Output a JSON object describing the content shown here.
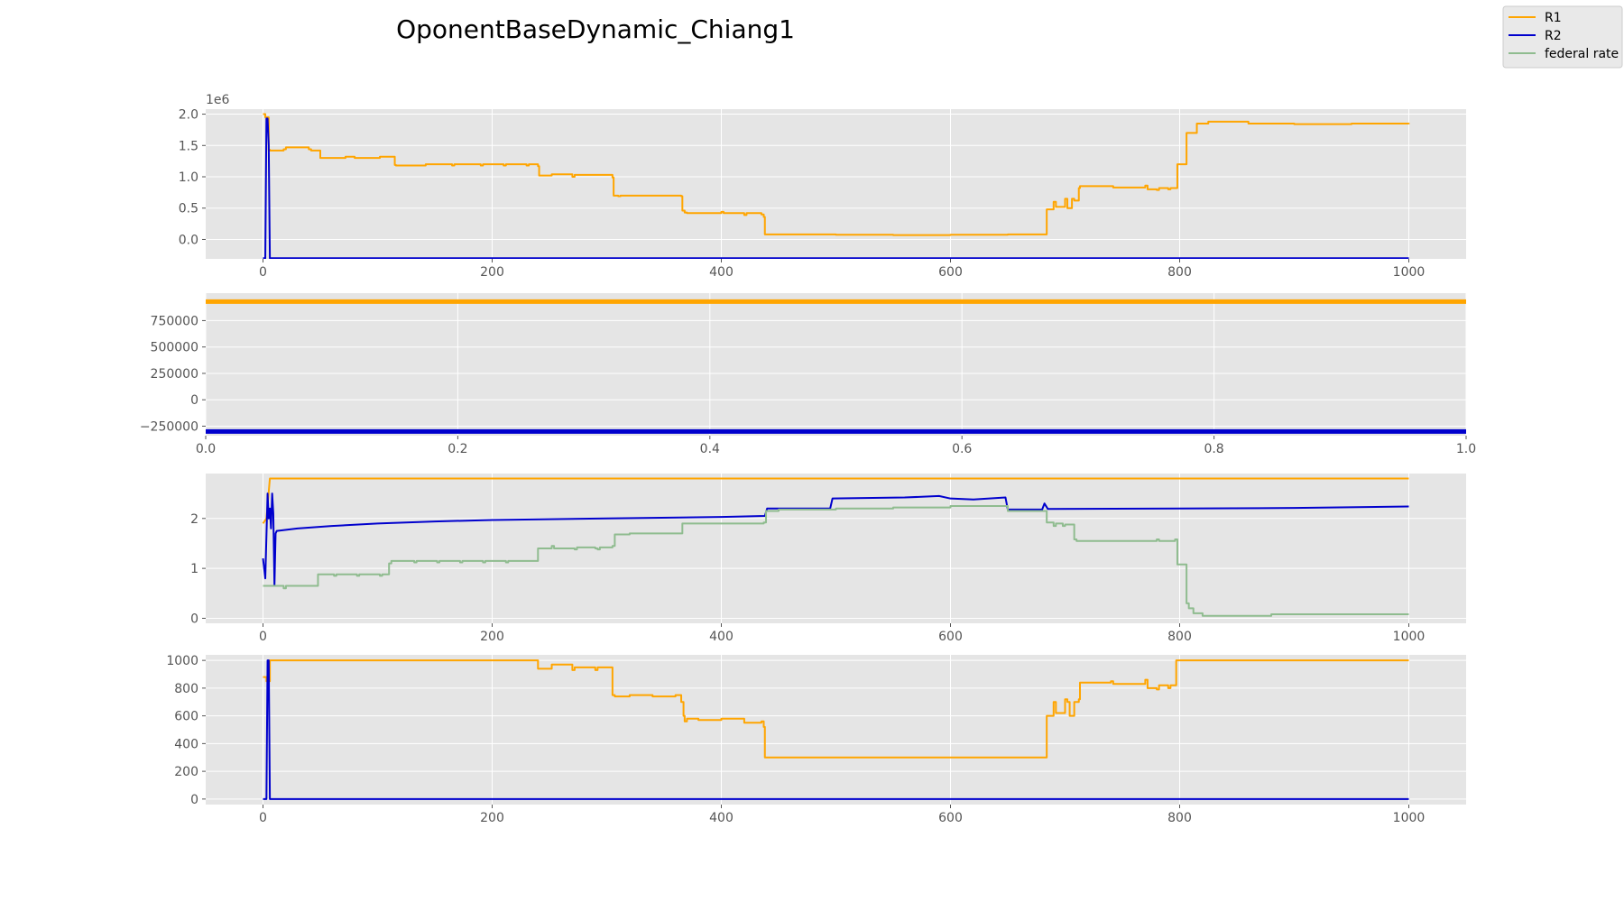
{
  "figure": {
    "title": "OponentBaseDynamic_Chiang1"
  },
  "legend": {
    "location": "upper-right",
    "entries": [
      {
        "name": "R1",
        "color": "#ffa500"
      },
      {
        "name": "R2",
        "color": "#0000cd"
      },
      {
        "name": "federal rate",
        "color": "#8fbc8f"
      }
    ]
  },
  "chart_data": [
    {
      "type": "line",
      "xlim": [
        -50,
        1050
      ],
      "ylim": [
        -310000,
        2080000
      ],
      "xticks": [
        0,
        200,
        400,
        600,
        800,
        1000
      ],
      "xtick_labels": [
        "0",
        "200",
        "400",
        "600",
        "800",
        "1000"
      ],
      "yticks": [
        0,
        500000,
        1000000,
        1500000,
        2000000
      ],
      "ytick_labels": [
        "0.0",
        "0.5",
        "1.0",
        "1.5",
        "2.0"
      ],
      "offset_label": "1e6",
      "grid": true,
      "series": [
        {
          "name": "R1",
          "color": "#ffa500",
          "step": true,
          "x": [
            0,
            2,
            5,
            6,
            18,
            20,
            40,
            42,
            50,
            51,
            70,
            72,
            80,
            82,
            100,
            102,
            115,
            116,
            140,
            142,
            165,
            167,
            190,
            192,
            210,
            212,
            230,
            232,
            240,
            241,
            250,
            252,
            270,
            272,
            305,
            306,
            310,
            312,
            365,
            366,
            368,
            370,
            400,
            402,
            420,
            422,
            435,
            437,
            438,
            500,
            550,
            600,
            650,
            683,
            684,
            690,
            692,
            700,
            702,
            706,
            708,
            712,
            713,
            740,
            742,
            770,
            772,
            780,
            782,
            790,
            792,
            797,
            798,
            805,
            806,
            815,
            825,
            850,
            860,
            880,
            900,
            950,
            1000
          ],
          "y": [
            2000000,
            1950000,
            1430000,
            1420000,
            1440000,
            1470000,
            1440000,
            1420000,
            1300000,
            1300000,
            1300000,
            1320000,
            1300000,
            1300000,
            1300000,
            1320000,
            1190000,
            1180000,
            1180000,
            1200000,
            1180000,
            1200000,
            1180000,
            1200000,
            1180000,
            1200000,
            1180000,
            1200000,
            1170000,
            1020000,
            1020000,
            1040000,
            1000000,
            1030000,
            990000,
            700000,
            690000,
            700000,
            690000,
            460000,
            430000,
            420000,
            440000,
            420000,
            390000,
            420000,
            400000,
            360000,
            80000,
            75000,
            70000,
            75000,
            80000,
            80000,
            480000,
            600000,
            520000,
            650000,
            500000,
            650000,
            620000,
            820000,
            850000,
            850000,
            830000,
            860000,
            800000,
            790000,
            820000,
            800000,
            820000,
            820000,
            1200000,
            1200000,
            1700000,
            1850000,
            1880000,
            1880000,
            1850000,
            1850000,
            1840000,
            1850000,
            1840000
          ]
        },
        {
          "name": "R2",
          "color": "#0000cd",
          "step": false,
          "x": [
            0,
            2,
            3,
            4,
            5,
            6,
            8,
            1000
          ],
          "y": [
            -300000,
            -300000,
            1930000,
            1930000,
            1500000,
            -300000,
            -300000,
            -300000
          ]
        }
      ]
    },
    {
      "type": "line",
      "xlim": [
        0,
        1
      ],
      "ylim": [
        -340000,
        1010000
      ],
      "xticks": [
        0,
        0.2,
        0.4,
        0.6,
        0.8,
        1.0
      ],
      "xtick_labels": [
        "0.0",
        "0.2",
        "0.4",
        "0.6",
        "0.8",
        "1.0"
      ],
      "yticks": [
        -250000,
        0,
        250000,
        500000,
        750000
      ],
      "ytick_labels": [
        "−250000",
        "0",
        "250000",
        "500000",
        "750000"
      ],
      "grid": true,
      "series": [
        {
          "name": "R1",
          "color": "#ffa500",
          "step": false,
          "x": [
            0,
            1
          ],
          "y": [
            930000,
            930000
          ],
          "width": 5
        },
        {
          "name": "R2",
          "color": "#0000cd",
          "step": false,
          "x": [
            0,
            1
          ],
          "y": [
            -300000,
            -300000
          ],
          "width": 5
        }
      ]
    },
    {
      "type": "line",
      "xlim": [
        -50,
        1050
      ],
      "ylim": [
        -0.1,
        2.9
      ],
      "xticks": [
        0,
        200,
        400,
        600,
        800,
        1000
      ],
      "xtick_labels": [
        "0",
        "200",
        "400",
        "600",
        "800",
        "1000"
      ],
      "yticks": [
        0,
        1,
        2
      ],
      "ytick_labels": [
        "0",
        "1",
        "2"
      ],
      "grid": true,
      "series": [
        {
          "name": "R1",
          "color": "#ffa500",
          "step": false,
          "x": [
            0,
            3,
            6,
            1000
          ],
          "y": [
            1.9,
            2.0,
            2.8,
            2.8
          ]
        },
        {
          "name": "R2",
          "color": "#0000cd",
          "step": false,
          "x": [
            0,
            2,
            4,
            5,
            6,
            7,
            8,
            9,
            10,
            11,
            12,
            30,
            60,
            100,
            150,
            200,
            300,
            400,
            438,
            440,
            495,
            497,
            560,
            590,
            600,
            620,
            648,
            650,
            680,
            682,
            685,
            800,
            900,
            1000
          ],
          "y": [
            1.2,
            0.8,
            2.5,
            2.0,
            2.2,
            1.8,
            2.5,
            2.1,
            0.65,
            1.7,
            1.75,
            1.8,
            1.85,
            1.9,
            1.94,
            1.97,
            2.0,
            2.03,
            2.05,
            2.2,
            2.2,
            2.4,
            2.42,
            2.45,
            2.4,
            2.38,
            2.42,
            2.18,
            2.18,
            2.3,
            2.19,
            2.2,
            2.21,
            2.24
          ]
        },
        {
          "name": "federal rate",
          "color": "#8fbc8f",
          "step": true,
          "x": [
            0,
            16,
            18,
            20,
            38,
            40,
            48,
            50,
            60,
            62,
            64,
            80,
            82,
            84,
            100,
            102,
            104,
            110,
            112,
            114,
            130,
            132,
            134,
            150,
            152,
            154,
            170,
            172,
            174,
            190,
            192,
            194,
            210,
            212,
            214,
            238,
            240,
            250,
            252,
            254,
            270,
            272,
            274,
            290,
            292,
            294,
            305,
            307,
            320,
            364,
            366,
            400,
            437,
            439,
            450,
            500,
            550,
            600,
            650,
            682,
            684,
            690,
            692,
            698,
            700,
            708,
            710,
            740,
            760,
            770,
            780,
            782,
            796,
            798,
            804,
            806,
            808,
            812,
            820,
            840,
            860,
            880,
            900,
            950,
            1000
          ],
          "y": [
            0.65,
            0.65,
            0.6,
            0.65,
            0.65,
            0.65,
            0.88,
            0.88,
            0.88,
            0.85,
            0.88,
            0.88,
            0.85,
            0.88,
            0.88,
            0.85,
            0.88,
            1.1,
            1.15,
            1.15,
            1.15,
            1.12,
            1.15,
            1.15,
            1.12,
            1.15,
            1.15,
            1.12,
            1.15,
            1.15,
            1.12,
            1.15,
            1.15,
            1.12,
            1.15,
            1.15,
            1.4,
            1.4,
            1.45,
            1.4,
            1.4,
            1.38,
            1.42,
            1.4,
            1.38,
            1.42,
            1.45,
            1.68,
            1.7,
            1.7,
            1.9,
            1.9,
            1.92,
            2.15,
            2.18,
            2.2,
            2.22,
            2.25,
            2.15,
            2.15,
            1.92,
            1.85,
            1.9,
            1.85,
            1.88,
            1.58,
            1.55,
            1.55,
            1.55,
            1.55,
            1.58,
            1.55,
            1.58,
            1.08,
            1.08,
            0.3,
            0.2,
            0.1,
            0.05,
            0.05,
            0.05,
            0.08,
            0.08,
            0.08,
            0.08
          ]
        }
      ]
    },
    {
      "type": "line",
      "xlim": [
        -50,
        1050
      ],
      "ylim": [
        -40,
        1040
      ],
      "xticks": [
        0,
        200,
        400,
        600,
        800,
        1000
      ],
      "xtick_labels": [
        "0",
        "200",
        "400",
        "600",
        "800",
        "1000"
      ],
      "yticks": [
        0,
        200,
        400,
        600,
        800,
        1000
      ],
      "ytick_labels": [
        "0",
        "200",
        "400",
        "600",
        "800",
        "1000"
      ],
      "grid": true,
      "series": [
        {
          "name": "R1",
          "color": "#ffa500",
          "step": true,
          "x": [
            0,
            3,
            6,
            100,
            200,
            238,
            240,
            250,
            252,
            270,
            272,
            290,
            292,
            305,
            307,
            320,
            340,
            360,
            365,
            367,
            368,
            370,
            380,
            400,
            420,
            435,
            437,
            438,
            500,
            550,
            600,
            650,
            682,
            684,
            690,
            692,
            700,
            702,
            704,
            708,
            712,
            713,
            740,
            742,
            770,
            772,
            780,
            782,
            790,
            792,
            796,
            797,
            1000
          ],
          "y": [
            880,
            850,
            1000,
            1000,
            1000,
            1000,
            940,
            940,
            970,
            930,
            950,
            930,
            950,
            750,
            740,
            750,
            740,
            750,
            700,
            600,
            560,
            580,
            570,
            580,
            550,
            560,
            520,
            300,
            300,
            300,
            300,
            300,
            300,
            600,
            700,
            620,
            720,
            700,
            600,
            700,
            720,
            840,
            850,
            830,
            860,
            800,
            790,
            820,
            800,
            820,
            820,
            1000,
            1000
          ]
        },
        {
          "name": "R2",
          "color": "#0000cd",
          "step": false,
          "x": [
            0,
            3,
            4,
            5,
            6,
            8,
            1000
          ],
          "y": [
            0,
            0,
            1000,
            1000,
            0,
            0,
            0
          ]
        }
      ]
    }
  ]
}
